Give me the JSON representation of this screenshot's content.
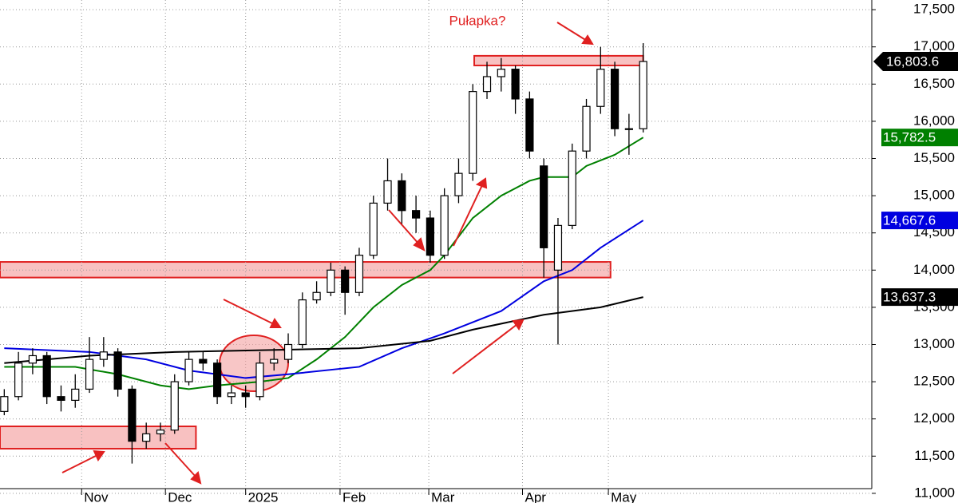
{
  "chart_data": {
    "type": "candlestick",
    "annotation": "Pułapka?",
    "xlim": [
      -0.3,
      61.1
    ],
    "ylim": [
      10870,
      17630
    ],
    "xticks": [
      {
        "value": 5.45,
        "label": "Nov"
      },
      {
        "value": 11.35,
        "label": "Dec"
      },
      {
        "value": 17.0,
        "label": "2025"
      },
      {
        "value": 23.65,
        "label": "Feb"
      },
      {
        "value": 29.9,
        "label": "Mar"
      },
      {
        "value": 36.5,
        "label": "Apr"
      },
      {
        "value": 42.55,
        "label": "May"
      }
    ],
    "yticks": [
      {
        "value": 11000,
        "label": "11,000"
      },
      {
        "value": 11500,
        "label": "11,500"
      },
      {
        "value": 12000,
        "label": "12,000"
      },
      {
        "value": 12500,
        "label": "12,500"
      },
      {
        "value": 13000,
        "label": "13,000"
      },
      {
        "value": 13500,
        "label": "13,500"
      },
      {
        "value": 14000,
        "label": "14,000"
      },
      {
        "value": 14500,
        "label": "14,500"
      },
      {
        "value": 15000,
        "label": "15,000"
      },
      {
        "value": 15500,
        "label": "15,500"
      },
      {
        "value": 16000,
        "label": "16,000"
      },
      {
        "value": 16500,
        "label": "16,500"
      },
      {
        "value": 17000,
        "label": "17,000"
      },
      {
        "value": 17500,
        "label": "17,500"
      }
    ],
    "grid": true,
    "up_color": "#ffffff",
    "down_color": "#000000",
    "open": [
      12100,
      12300,
      12750,
      12850,
      12300,
      12250,
      12400,
      12800,
      12900,
      12400,
      11700,
      11800,
      11850,
      12500,
      12800,
      12750,
      12300,
      12350,
      12300,
      12750,
      12800,
      13000,
      13600,
      13700,
      14000,
      13700,
      14200,
      14900,
      15200,
      14800,
      14700,
      14200,
      15000,
      15300,
      16400,
      16600,
      16700,
      16300,
      15400,
      14000,
      14600,
      15600,
      16200,
      16700,
      15900,
      15900
    ],
    "high": [
      12400,
      12900,
      12950,
      12900,
      12450,
      12600,
      13100,
      13100,
      12950,
      12450,
      11950,
      11950,
      12600,
      12900,
      12900,
      12800,
      12450,
      12450,
      12900,
      12950,
      13150,
      13700,
      13850,
      14100,
      14050,
      14300,
      15000,
      15500,
      15300,
      15000,
      14800,
      15100,
      15500,
      16500,
      16800,
      16850,
      16750,
      16400,
      15500,
      14700,
      15700,
      16300,
      17000,
      16800,
      16100,
      17050
    ],
    "low": [
      12050,
      12250,
      12600,
      12200,
      12100,
      12150,
      12350,
      12700,
      12300,
      11400,
      11600,
      11700,
      11800,
      12450,
      12650,
      12200,
      12200,
      12150,
      12250,
      12650,
      12750,
      12950,
      13550,
      13650,
      13400,
      13650,
      14150,
      14800,
      14600,
      14500,
      14100,
      14150,
      14900,
      15200,
      16300,
      16400,
      16100,
      15500,
      13900,
      13000,
      14550,
      15500,
      16100,
      15800,
      15550,
      15850
    ],
    "close": [
      12300,
      12750,
      12850,
      12300,
      12250,
      12400,
      12800,
      12900,
      12400,
      11700,
      11800,
      11850,
      12500,
      12800,
      12750,
      12300,
      12350,
      12300,
      12750,
      12800,
      13000,
      13600,
      13700,
      14000,
      13700,
      14200,
      14900,
      15200,
      14800,
      14700,
      14200,
      15000,
      15300,
      16400,
      16600,
      16700,
      16300,
      15600,
      14300,
      14600,
      15600,
      16200,
      16700,
      15900,
      15900,
      16803.6
    ],
    "last_label": {
      "value": 16803.6,
      "label": "16,803.6"
    },
    "series": [
      {
        "color": "#008000",
        "x": [
          0,
          5,
          8,
          11,
          13,
          15,
          18,
          20,
          22,
          24,
          26,
          28,
          30,
          31,
          33,
          35,
          37,
          38,
          40,
          41,
          43,
          45
        ],
        "values": [
          12700,
          12700,
          12600,
          12450,
          12400,
          12450,
          12500,
          12550,
          12800,
          13100,
          13500,
          13800,
          14000,
          14200,
          14700,
          15000,
          15200,
          15250,
          15250,
          15400,
          15550,
          15782.5
        ],
        "last_label": {
          "value": 15782.5,
          "label": "15,782.5"
        }
      },
      {
        "color": "#0000e0",
        "x": [
          0,
          6,
          10,
          13,
          17,
          20,
          25,
          28,
          31,
          35,
          38,
          40,
          42,
          45
        ],
        "values": [
          12950,
          12900,
          12800,
          12650,
          12550,
          12600,
          12700,
          12950,
          13150,
          13450,
          13850,
          14000,
          14300,
          14667.6
        ],
        "last_label": {
          "value": 14667.6,
          "label": "14,667.6"
        }
      },
      {
        "color": "#000000",
        "x": [
          0,
          6,
          12,
          25,
          30,
          33,
          38,
          42,
          45
        ],
        "values": [
          12750,
          12850,
          12900,
          12950,
          13050,
          13200,
          13400,
          13500,
          13637.3
        ],
        "last_label": {
          "value": 13637.3,
          "label": "13,637.3"
        }
      }
    ],
    "zones": [
      {
        "x": [
          -0.3,
          13.5
        ],
        "y": [
          11600,
          11900
        ]
      },
      {
        "x": [
          -0.3,
          42.7
        ],
        "y": [
          13900,
          14110
        ]
      },
      {
        "x": [
          33.1,
          45.0
        ],
        "y": [
          16750,
          16880
        ]
      }
    ]
  }
}
